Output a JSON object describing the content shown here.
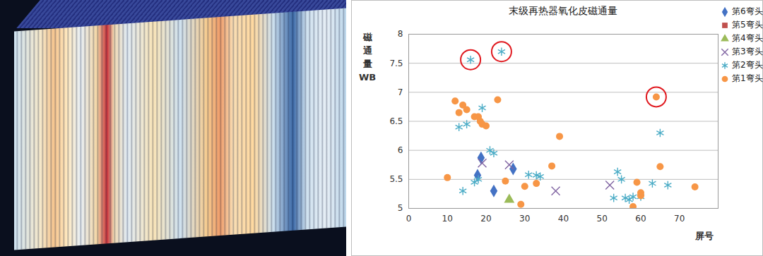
{
  "chart_data": {
    "type": "scatter",
    "title": "末级再热器氧化皮磁通量",
    "y_label": "磁通量 WB",
    "x_label": "屏号",
    "xlim": [
      0,
      80
    ],
    "xticks": [
      0,
      10,
      20,
      30,
      40,
      50,
      60,
      70
    ],
    "ylim": [
      5,
      8
    ],
    "yticks": [
      5,
      5.5,
      6,
      6.5,
      7,
      7.5,
      8
    ],
    "grid": true,
    "legend": "right",
    "series": [
      {
        "name": "第6弯头",
        "color": "#4472c4",
        "marker": "diamond",
        "x": [
          18.7,
          17.8,
          22,
          27
        ],
        "values": [
          5.87,
          5.57,
          5.3,
          5.68
        ]
      },
      {
        "name": "第5弯头",
        "color": "#c0504d",
        "marker": "square",
        "x": [],
        "values": []
      },
      {
        "name": "第4弯头",
        "color": "#9bbb59",
        "marker": "triangle",
        "x": [
          26
        ],
        "values": [
          5.15
        ]
      },
      {
        "name": "第3弯头",
        "color": "#8064a2",
        "marker": "times",
        "x": [
          19,
          26,
          38,
          52
        ],
        "values": [
          5.78,
          5.75,
          5.3,
          5.4
        ]
      },
      {
        "name": "第2弯头",
        "color": "#4bacc6",
        "marker": "asterisk",
        "x": [
          16,
          24,
          13,
          15,
          19,
          21,
          22,
          14,
          17,
          18,
          31,
          33,
          34,
          54,
          55,
          53,
          56,
          57,
          58,
          60,
          63,
          65,
          67
        ],
        "values": [
          7.56,
          7.7,
          6.4,
          6.45,
          6.73,
          6.0,
          5.95,
          5.3,
          5.45,
          5.5,
          5.58,
          5.57,
          5.55,
          5.63,
          5.5,
          5.18,
          5.18,
          5.15,
          5.2,
          5.2,
          5.43,
          6.3,
          5.4
        ]
      },
      {
        "name": "第1弯头",
        "color": "#f79646",
        "marker": "circle",
        "x": [
          12,
          13,
          14,
          15,
          17,
          18,
          18.5,
          19,
          20,
          23,
          10,
          25,
          29,
          30,
          33,
          37,
          39,
          58,
          59,
          60,
          60,
          64,
          65,
          74
        ],
        "values": [
          6.85,
          6.65,
          6.78,
          6.7,
          6.58,
          6.58,
          6.5,
          6.45,
          6.42,
          6.87,
          5.53,
          5.47,
          5.07,
          5.38,
          5.43,
          5.73,
          6.24,
          5.03,
          5.45,
          5.27,
          5.22,
          6.92,
          5.72,
          5.37
        ]
      }
    ],
    "highlights": {
      "color": "#e0191f",
      "x": [
        16,
        24,
        64
      ],
      "values": [
        7.56,
        7.7,
        6.92
      ]
    }
  }
}
